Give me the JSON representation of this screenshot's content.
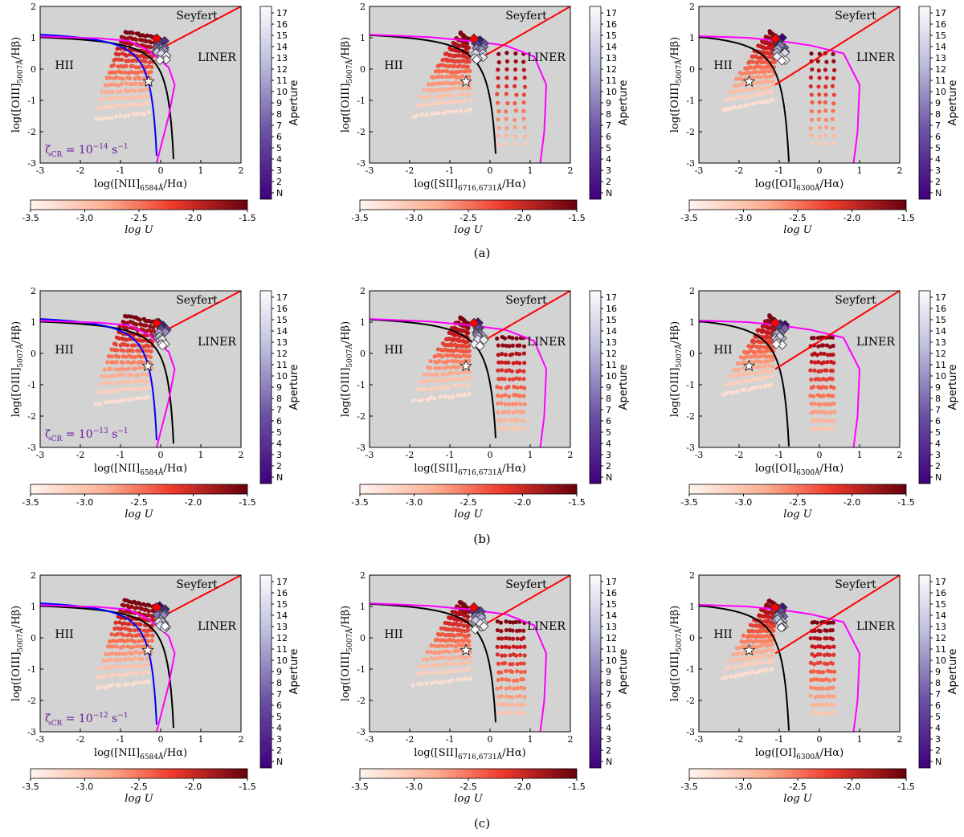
{
  "figure": {
    "row_labels": [
      "(a)",
      "(b)",
      "(c)"
    ],
    "zeta_labels": [
      {
        "prefix": "ζ",
        "sub": "CR",
        "eq": " = 10",
        "exp": "−14",
        "unit": " s",
        "uexp": "−1"
      },
      {
        "prefix": "ζ",
        "sub": "CR",
        "eq": " = 10",
        "exp": "−13",
        "unit": " s",
        "uexp": "−1"
      },
      {
        "prefix": "ζ",
        "sub": "CR",
        "eq": " = 10",
        "exp": "−12",
        "unit": " s",
        "uexp": "−1"
      }
    ],
    "region_labels": {
      "seyfert": "Seyfert",
      "liner": "LINER",
      "hii": "HII"
    },
    "ylabel": {
      "main": "log([OIII]",
      "sub": "5007Å",
      "tail": "/Hβ)"
    },
    "xlabels": [
      {
        "main": "log([NII]",
        "sub": "6584Å",
        "tail": "/Hα)"
      },
      {
        "main": "log([SII]",
        "sub": "6716,6731Å",
        "tail": "/Hα)"
      },
      {
        "main": "log([OI]",
        "sub": "6300Å",
        "tail": "/Hα)"
      }
    ],
    "colorbar_logU": {
      "label": "log U",
      "ticks": [
        "-3.5",
        "-3.0",
        "-2.5",
        "-2.0",
        "-1.5"
      ]
    },
    "colorbar_aperture": {
      "label": "Aperture",
      "ticks": [
        "N",
        "2",
        "3",
        "4",
        "5",
        "6",
        "7",
        "8",
        "9",
        "10",
        "11",
        "12",
        "13",
        "14",
        "15",
        "16",
        "17"
      ]
    },
    "colors": {
      "panel_bg": "#d3d3d3",
      "kewley": "#000000",
      "kauffmann": "#0000ff",
      "model": "#ff00ff",
      "seyfert_liner": "#ff0000",
      "star": "#ffffff",
      "diamond": "#ff0000"
    }
  },
  "chart_data": [
    {
      "type": "scatter",
      "row": "a",
      "diagram": "NII",
      "xlim": [
        -3,
        2
      ],
      "ylim": [
        -3,
        2
      ],
      "star": [
        -0.3,
        -0.4
      ],
      "zeta": "10^-14 s^-1"
    },
    {
      "type": "scatter",
      "row": "a",
      "diagram": "SII",
      "xlim": [
        -3,
        2
      ],
      "ylim": [
        -3,
        2
      ],
      "star": [
        -0.6,
        -0.4
      ]
    },
    {
      "type": "scatter",
      "row": "a",
      "diagram": "OI",
      "xlim": [
        -3,
        2
      ],
      "ylim": [
        -3,
        2
      ],
      "star": [
        -1.75,
        -0.4
      ]
    },
    {
      "type": "scatter",
      "row": "b",
      "diagram": "NII",
      "xlim": [
        -3,
        2
      ],
      "ylim": [
        -3,
        2
      ],
      "star": [
        -0.32,
        -0.4
      ],
      "zeta": "10^-13 s^-1"
    },
    {
      "type": "scatter",
      "row": "b",
      "diagram": "SII",
      "xlim": [
        -3,
        2
      ],
      "ylim": [
        -3,
        2
      ],
      "star": [
        -0.6,
        -0.4
      ]
    },
    {
      "type": "scatter",
      "row": "b",
      "diagram": "OI",
      "xlim": [
        -3,
        2
      ],
      "ylim": [
        -3,
        2
      ],
      "star": [
        -1.75,
        -0.4
      ]
    },
    {
      "type": "scatter",
      "row": "c",
      "diagram": "NII",
      "xlim": [
        -3,
        2
      ],
      "ylim": [
        -3,
        2
      ],
      "star": [
        -0.32,
        -0.4
      ],
      "zeta": "10^-12 s^-1"
    },
    {
      "type": "scatter",
      "row": "c",
      "diagram": "SII",
      "xlim": [
        -3,
        2
      ],
      "ylim": [
        -3,
        2
      ],
      "star": [
        -0.6,
        -0.4
      ]
    },
    {
      "type": "scatter",
      "row": "c",
      "diagram": "OI",
      "xlim": [
        -3,
        2
      ],
      "ylim": [
        -3,
        2
      ],
      "star": [
        -1.75,
        -0.4
      ]
    }
  ],
  "axis_ticks": {
    "x": [
      "-3",
      "-2",
      "-1",
      "0",
      "1",
      "2"
    ],
    "y": [
      "-3",
      "-2",
      "-1",
      "0",
      "1",
      "2"
    ]
  }
}
